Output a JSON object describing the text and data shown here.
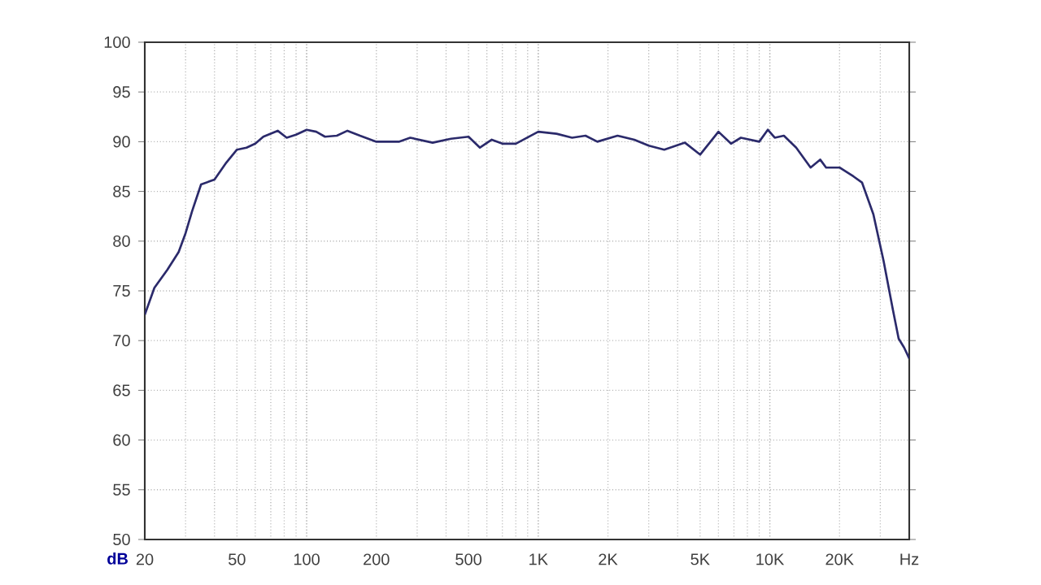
{
  "chart_data": {
    "type": "line",
    "ylabel": "dB",
    "log": "x",
    "xlim": [
      20,
      40000
    ],
    "ylim": [
      50,
      100
    ],
    "xticks": [
      20,
      50,
      100,
      200,
      500,
      {
        "value": 1000,
        "label": "1K"
      },
      {
        "value": 2000,
        "label": "2K"
      },
      {
        "value": 5000,
        "label": "5K"
      },
      {
        "value": 10000,
        "label": "10K"
      },
      {
        "value": 20000,
        "label": "20K"
      },
      {
        "value": 40000,
        "label": "Hz"
      }
    ],
    "yticks": [
      50,
      55,
      60,
      65,
      70,
      75,
      80,
      85,
      90,
      95,
      100
    ],
    "grid": true,
    "marker": "none",
    "line_style": "solid",
    "series": [
      {
        "color": "#2b2a6b",
        "x": [
          20,
          22,
          25,
          28,
          30,
          32,
          35,
          38,
          40,
          45,
          50,
          55,
          60,
          65,
          75,
          82,
          90,
          100,
          110,
          120,
          135,
          150,
          170,
          200,
          250,
          280,
          350,
          420,
          500,
          560,
          630,
          700,
          800,
          1000,
          1200,
          1400,
          1600,
          1800,
          2200,
          2600,
          3000,
          3500,
          4300,
          5000,
          6000,
          6800,
          7500,
          9000,
          9800,
          10500,
          11500,
          13000,
          15000,
          16500,
          17500,
          20000,
          23000,
          25000,
          28000,
          31000,
          34000,
          36000,
          38000,
          40000
        ],
        "values": [
          72.6,
          75.3,
          77.1,
          78.9,
          80.8,
          83.0,
          85.7,
          86.0,
          86.2,
          87.9,
          89.2,
          89.4,
          89.8,
          90.5,
          91.1,
          90.4,
          90.7,
          91.2,
          91.0,
          90.5,
          90.6,
          91.1,
          90.6,
          90.0,
          90.0,
          90.4,
          89.9,
          90.3,
          90.5,
          89.4,
          90.2,
          89.8,
          89.8,
          91.0,
          90.8,
          90.4,
          90.6,
          90.0,
          90.6,
          90.2,
          89.6,
          89.2,
          89.9,
          88.7,
          91.0,
          89.8,
          90.4,
          90.0,
          91.2,
          90.4,
          90.6,
          89.4,
          87.4,
          88.2,
          87.4,
          87.4,
          86.5,
          85.9,
          82.7,
          78.0,
          73.1,
          70.2,
          69.3,
          68.2
        ]
      }
    ]
  }
}
